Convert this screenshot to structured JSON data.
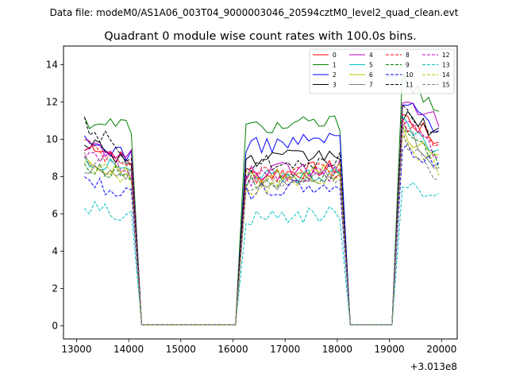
{
  "figure": {
    "suptitle": "Data file: modeM0/AS1A06_003T04_9000003046_20594cztM0_level2_quad_clean.evt"
  },
  "chart_data": {
    "type": "line",
    "title": "Quadrant 0 module wise count rates with 100.0s bins.",
    "xlabel": "",
    "ylabel": "",
    "x_offset_label": "+3.013e8",
    "xlim": [
      12750,
      20300
    ],
    "ylim": [
      -0.7,
      15.0
    ],
    "xticks": [
      13000,
      14000,
      15000,
      16000,
      17000,
      18000,
      19000,
      20000
    ],
    "xtick_labels": [
      "13000",
      "14000",
      "15000",
      "16000",
      "17000",
      "18000",
      "19000",
      "20000"
    ],
    "yticks": [
      0,
      2,
      4,
      6,
      8,
      10,
      12,
      14
    ],
    "ytick_labels": [
      "0",
      "2",
      "4",
      "6",
      "8",
      "10",
      "12",
      "14"
    ],
    "legend_position": "top-right",
    "legend_columns": 4,
    "segments": [
      {
        "start": 13150,
        "end": 14050,
        "step": 100
      },
      {
        "start": 16250,
        "end": 18050,
        "step": 100
      },
      {
        "start": 19250,
        "end": 19950,
        "step": 100
      }
    ],
    "gaps": [
      {
        "from": 14050,
        "to": 16250,
        "low_start": 14250,
        "low_end": 16050
      },
      {
        "from": 18050,
        "to": 19250,
        "low_start": 18250,
        "low_end": 19050
      }
    ],
    "low_level": 0.05,
    "series": [
      {
        "name": "0",
        "color": "#ff0000",
        "dash": "solid",
        "level": [
          10.0,
          8.0,
          11.3
        ],
        "trend": [
          -1.3,
          0.5,
          -1.5
        ]
      },
      {
        "name": "1",
        "color": "#008000",
        "dash": "solid",
        "level": [
          11.0,
          10.6,
          13.6
        ],
        "trend": [
          -0.3,
          0.3,
          -2.5
        ]
      },
      {
        "name": "2",
        "color": "#0000ff",
        "dash": "solid",
        "level": [
          9.8,
          9.6,
          12.0
        ],
        "trend": [
          -0.6,
          0.5,
          -1.4
        ]
      },
      {
        "name": "3",
        "color": "#000000",
        "dash": "solid",
        "level": [
          10.0,
          8.8,
          11.2
        ],
        "trend": [
          -1.2,
          0.4,
          -0.8
        ]
      },
      {
        "name": "4",
        "color": "#bf00bf",
        "dash": "solid",
        "level": [
          9.5,
          8.2,
          12.3
        ],
        "trend": [
          -0.5,
          0.4,
          -1.3
        ]
      },
      {
        "name": "5",
        "color": "#00bfbf",
        "dash": "solid",
        "level": [
          9.0,
          7.9,
          10.8
        ],
        "trend": [
          -0.8,
          0.3,
          -1.4
        ]
      },
      {
        "name": "6",
        "color": "#bfbf00",
        "dash": "solid",
        "level": [
          8.8,
          7.8,
          10.4
        ],
        "trend": [
          -0.8,
          0.5,
          -1.6
        ]
      },
      {
        "name": "7",
        "color": "#808080",
        "dash": "solid",
        "level": [
          8.6,
          7.5,
          10.6
        ],
        "trend": [
          -0.5,
          0.6,
          -2.0
        ]
      },
      {
        "name": "8",
        "color": "#ff0000",
        "dash": "dashed",
        "level": [
          9.6,
          8.0,
          11.0
        ],
        "trend": [
          -1.0,
          0.4,
          -1.5
        ]
      },
      {
        "name": "9",
        "color": "#008000",
        "dash": "dashed",
        "level": [
          8.7,
          7.6,
          10.6
        ],
        "trend": [
          -0.7,
          0.4,
          -1.8
        ]
      },
      {
        "name": "10",
        "color": "#0000ff",
        "dash": "dashed",
        "level": [
          7.8,
          7.2,
          9.5
        ],
        "trend": [
          -0.8,
          0.3,
          -0.8
        ]
      },
      {
        "name": "11",
        "color": "#000000",
        "dash": "dashed",
        "level": [
          10.8,
          8.7,
          12.0
        ],
        "trend": [
          -1.8,
          0.2,
          -2.0
        ]
      },
      {
        "name": "12",
        "color": "#bf00bf",
        "dash": "dashed",
        "level": [
          9.3,
          7.9,
          11.0
        ],
        "trend": [
          -0.9,
          0.3,
          -1.8
        ]
      },
      {
        "name": "13",
        "color": "#00bfbf",
        "dash": "dashed",
        "level": [
          6.4,
          5.8,
          7.8
        ],
        "trend": [
          -0.5,
          0.2,
          -0.9
        ]
      },
      {
        "name": "14",
        "color": "#bfbf00",
        "dash": "dashed",
        "level": [
          8.7,
          7.4,
          9.8
        ],
        "trend": [
          -0.8,
          0.5,
          -1.4
        ]
      },
      {
        "name": "15",
        "color": "#808080",
        "dash": "dashed",
        "level": [
          9.0,
          7.6,
          10.2
        ],
        "trend": [
          -0.8,
          0.4,
          -2.4
        ]
      }
    ]
  }
}
